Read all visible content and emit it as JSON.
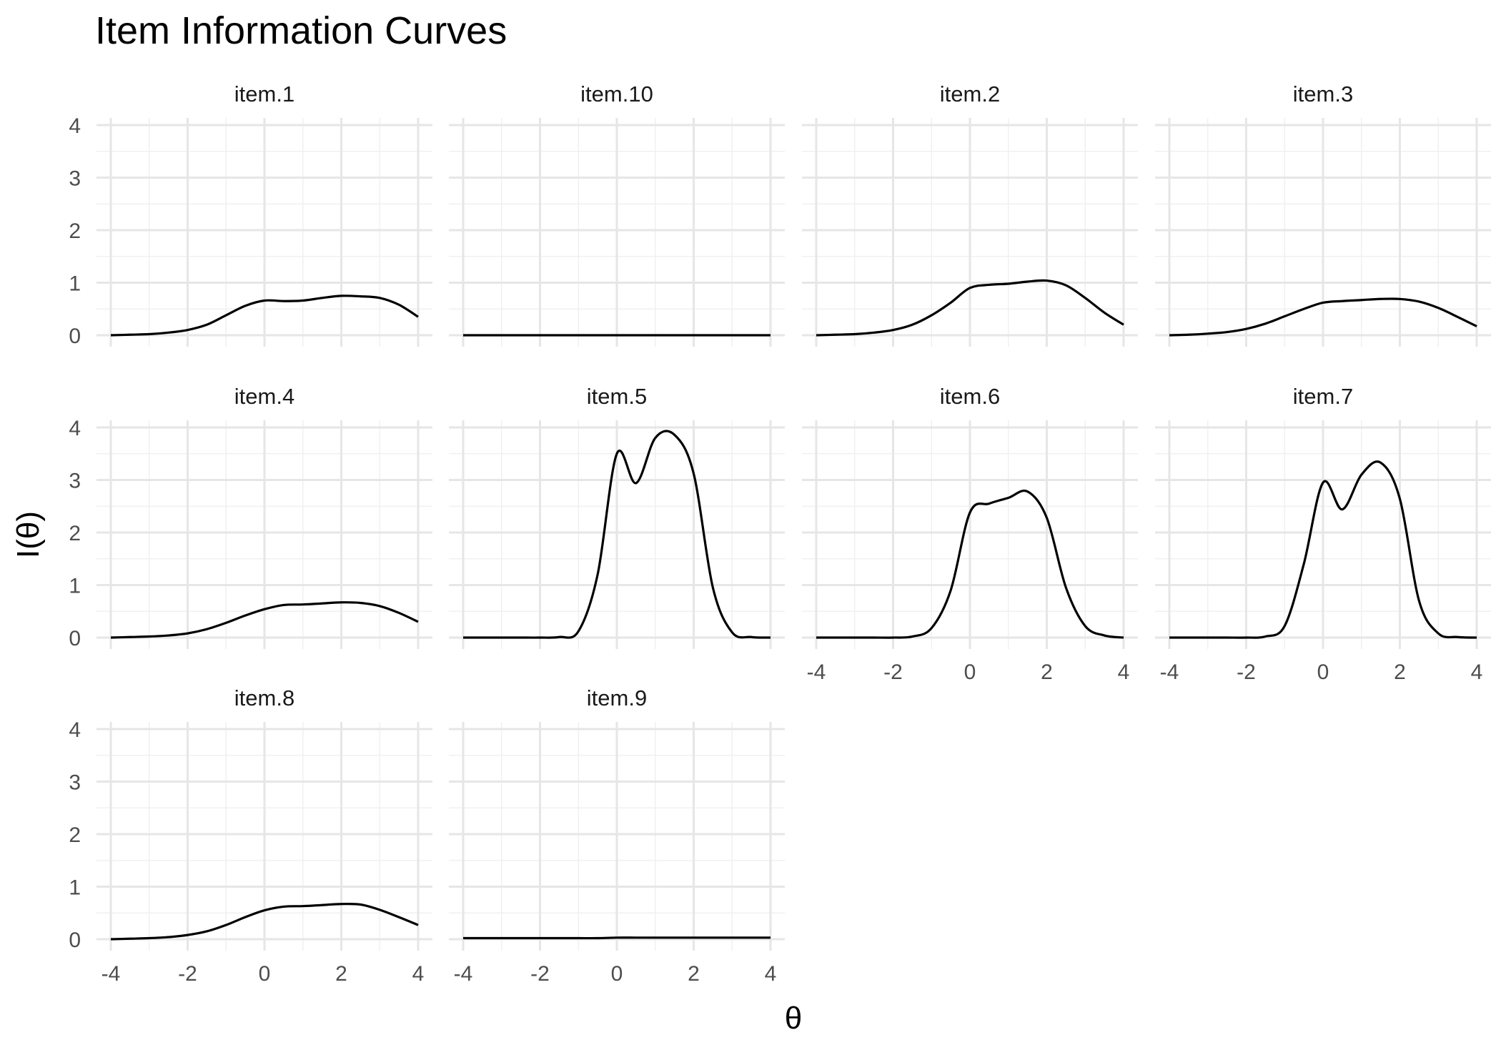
{
  "chart_data": {
    "type": "line",
    "title": "Item Information Curves",
    "xlabel": "θ",
    "ylabel": "I(θ)",
    "xlim": [
      -4,
      4
    ],
    "ylim": [
      0,
      4
    ],
    "x_ticks": [
      -4,
      -2,
      0,
      2,
      4
    ],
    "y_ticks": [
      0,
      1,
      2,
      3,
      4
    ],
    "grid": true,
    "x": [
      -4,
      -3.5,
      -3,
      -2.5,
      -2,
      -1.5,
      -1,
      -0.5,
      0,
      0.5,
      1,
      1.5,
      2,
      2.5,
      3,
      3.5,
      4
    ],
    "panels": [
      {
        "label": "item.1",
        "values": [
          0.0,
          0.01,
          0.02,
          0.05,
          0.1,
          0.2,
          0.38,
          0.56,
          0.66,
          0.65,
          0.66,
          0.71,
          0.75,
          0.74,
          0.71,
          0.58,
          0.35
        ]
      },
      {
        "label": "item.10",
        "values": [
          0.0,
          0.0,
          0.0,
          0.0,
          0.0,
          0.0,
          0.0,
          0.0,
          0.0,
          0.0,
          0.0,
          0.0,
          0.0,
          0.0,
          0.0,
          0.0,
          0.0
        ]
      },
      {
        "label": "item.2",
        "values": [
          0.0,
          0.01,
          0.02,
          0.05,
          0.1,
          0.2,
          0.38,
          0.62,
          0.9,
          0.96,
          0.98,
          1.02,
          1.04,
          0.95,
          0.71,
          0.43,
          0.2
        ]
      },
      {
        "label": "item.3",
        "values": [
          0.0,
          0.01,
          0.03,
          0.06,
          0.12,
          0.22,
          0.36,
          0.5,
          0.62,
          0.65,
          0.67,
          0.69,
          0.69,
          0.64,
          0.52,
          0.35,
          0.17
        ]
      },
      {
        "label": "item.4",
        "values": [
          0.0,
          0.01,
          0.02,
          0.04,
          0.08,
          0.16,
          0.28,
          0.42,
          0.54,
          0.62,
          0.63,
          0.65,
          0.67,
          0.66,
          0.6,
          0.47,
          0.3
        ]
      },
      {
        "label": "item.5",
        "values": [
          0.0,
          0.0,
          0.0,
          0.0,
          0.0,
          0.01,
          0.12,
          1.2,
          3.5,
          2.94,
          3.8,
          3.86,
          3.12,
          0.95,
          0.1,
          0.01,
          0.0
        ]
      },
      {
        "label": "item.6",
        "values": [
          0.0,
          0.0,
          0.0,
          0.0,
          0.0,
          0.02,
          0.18,
          0.9,
          2.38,
          2.55,
          2.66,
          2.78,
          2.28,
          0.95,
          0.22,
          0.04,
          0.0
        ]
      },
      {
        "label": "item.7",
        "values": [
          0.0,
          0.0,
          0.0,
          0.0,
          0.0,
          0.02,
          0.22,
          1.4,
          2.95,
          2.44,
          3.1,
          3.33,
          2.64,
          0.7,
          0.08,
          0.01,
          0.0
        ]
      },
      {
        "label": "item.8",
        "values": [
          0.0,
          0.01,
          0.02,
          0.04,
          0.08,
          0.15,
          0.27,
          0.42,
          0.55,
          0.62,
          0.63,
          0.65,
          0.67,
          0.66,
          0.56,
          0.42,
          0.27
        ]
      },
      {
        "label": "item.9",
        "values": [
          0.02,
          0.02,
          0.02,
          0.02,
          0.02,
          0.02,
          0.02,
          0.02,
          0.03,
          0.03,
          0.03,
          0.03,
          0.03,
          0.03,
          0.03,
          0.03,
          0.03
        ]
      }
    ]
  }
}
